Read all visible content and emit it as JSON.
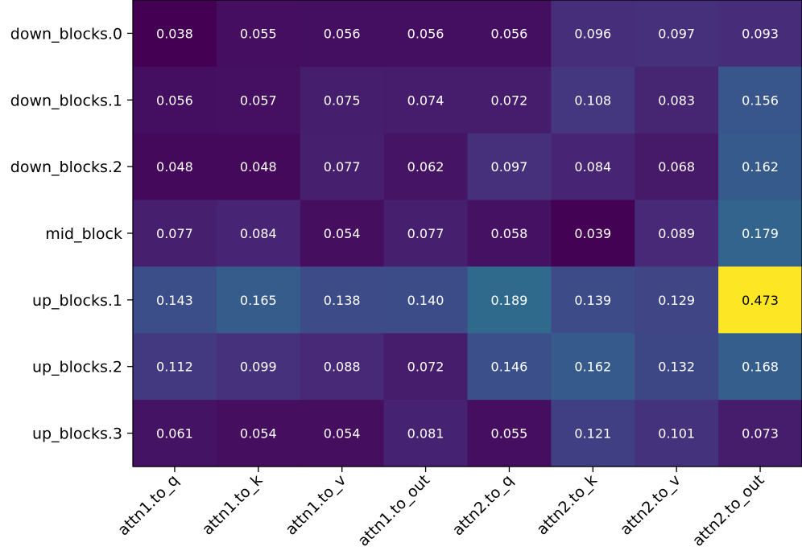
{
  "chart_data": {
    "type": "heatmap",
    "title": "",
    "xlabel": "",
    "ylabel": "",
    "x_categories": [
      "attn1.to_q",
      "attn1.to_k",
      "attn1.to_v",
      "attn1.to_out",
      "attn2.to_q",
      "attn2.to_k",
      "attn2.to_v",
      "attn2.to_out"
    ],
    "y_categories": [
      "down_blocks.0",
      "down_blocks.1",
      "down_blocks.2",
      "mid_block",
      "up_blocks.1",
      "up_blocks.2",
      "up_blocks.3"
    ],
    "values": [
      [
        0.038,
        0.055,
        0.056,
        0.056,
        0.056,
        0.096,
        0.097,
        0.093
      ],
      [
        0.056,
        0.057,
        0.075,
        0.074,
        0.072,
        0.108,
        0.083,
        0.156
      ],
      [
        0.048,
        0.048,
        0.077,
        0.062,
        0.097,
        0.084,
        0.068,
        0.162
      ],
      [
        0.077,
        0.084,
        0.054,
        0.077,
        0.058,
        0.039,
        0.089,
        0.179
      ],
      [
        0.143,
        0.165,
        0.138,
        0.14,
        0.189,
        0.139,
        0.129,
        0.473
      ],
      [
        0.112,
        0.099,
        0.088,
        0.072,
        0.146,
        0.162,
        0.132,
        0.168
      ],
      [
        0.061,
        0.054,
        0.054,
        0.081,
        0.055,
        0.121,
        0.101,
        0.073
      ]
    ],
    "value_labels": [
      [
        "0.038",
        "0.055",
        "0.056",
        "0.056",
        "0.056",
        "0.096",
        "0.097",
        "0.093"
      ],
      [
        "0.056",
        "0.057",
        "0.075",
        "0.074",
        "0.072",
        "0.108",
        "0.083",
        "0.156"
      ],
      [
        "0.048",
        "0.048",
        "0.077",
        "0.062",
        "0.097",
        "0.084",
        "0.068",
        "0.162"
      ],
      [
        "0.077",
        "0.084",
        "0.054",
        "0.077",
        "0.058",
        "0.039",
        "0.089",
        "0.179"
      ],
      [
        "0.143",
        "0.165",
        "0.138",
        "0.140",
        "0.189",
        "0.139",
        "0.129",
        "0.473"
      ],
      [
        "0.112",
        "0.099",
        "0.088",
        "0.072",
        "0.146",
        "0.162",
        "0.132",
        "0.168"
      ],
      [
        "0.061",
        "0.054",
        "0.054",
        "0.081",
        "0.055",
        "0.121",
        "0.101",
        "0.073"
      ]
    ],
    "colormap": "viridis",
    "value_range": [
      0.038,
      0.473
    ],
    "label_colors": {
      "dark_bg": "#ffffff",
      "light_bg": "#000000"
    },
    "legend": "none",
    "grid": false
  }
}
